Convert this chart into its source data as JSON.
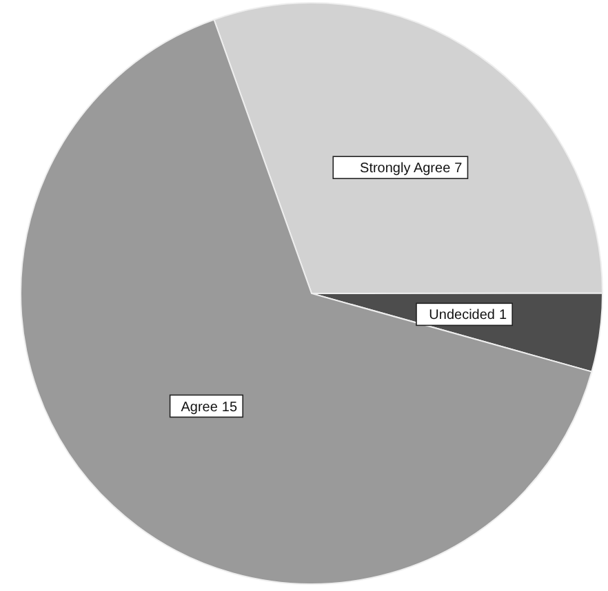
{
  "chart_data": {
    "type": "pie",
    "categories": [
      "Strongly Agree",
      "Undecided",
      "Agree"
    ],
    "values": [
      7,
      1,
      15
    ],
    "colors": [
      "#d2d2d2",
      "#4d4d4d",
      "#9a9a9a"
    ],
    "data_labels": true
  }
}
